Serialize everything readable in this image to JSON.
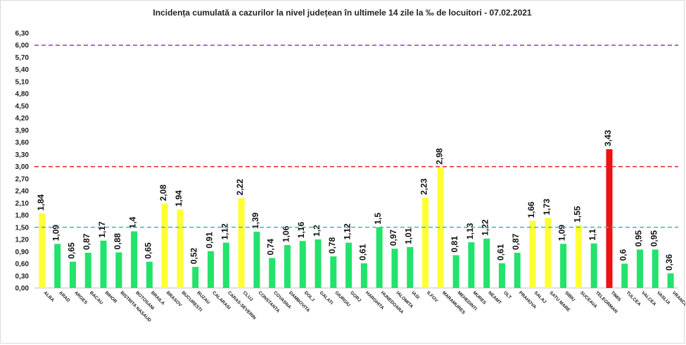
{
  "chart_data": {
    "type": "bar",
    "title": "Incidența cumulată a cazurilor la nivel județean în ultimele 14 zile la ‰ de locuitori - 07.02.2021",
    "xlabel": "",
    "ylabel": "",
    "ylim": [
      0,
      6.3
    ],
    "yticks": [
      "0,00",
      "0,30",
      "0,60",
      "0,90",
      "1,20",
      "1,50",
      "1,80",
      "2,10",
      "2,40",
      "2,70",
      "3,00",
      "3,30",
      "3,60",
      "3,90",
      "4,20",
      "4,50",
      "4,80",
      "5,10",
      "5,40",
      "5,70",
      "6,00",
      "6,30"
    ],
    "grid": false,
    "legend": "none",
    "categories": [
      "ALBA",
      "ARAD",
      "ARGES",
      "BACAU",
      "BIHOR",
      "BISTRITA NASAUD",
      "BOTOSANI",
      "BRAILA",
      "BRASOV",
      "BUCURESTI",
      "BUZAU",
      "CALARASI",
      "CARAS-SEVERIN",
      "CLUJ",
      "CONSTANTA",
      "COVASNA",
      "DAMBOVITA",
      "DOLJ",
      "GALATI",
      "GIURGIU",
      "GORJ",
      "HARGHITA",
      "HUNEDOARA",
      "IALOMITA",
      "IASI",
      "ILFOV",
      "MARAMURES",
      "MEHEDINTI",
      "MURES",
      "NEAMT",
      "OLT",
      "PRAHOVA",
      "SALAJ",
      "SATU MARE",
      "SIBIU",
      "SUCEAVA",
      "TELEORMAN",
      "TIMIS",
      "TULCEA",
      "VALCEA",
      "VASLUI",
      "VRANCEA"
    ],
    "values": [
      1.84,
      1.09,
      0.65,
      0.87,
      1.17,
      0.88,
      1.4,
      0.65,
      2.08,
      1.94,
      0.52,
      0.91,
      1.12,
      2.22,
      1.39,
      0.74,
      1.06,
      1.16,
      1.2,
      0.78,
      1.12,
      0.61,
      1.5,
      0.97,
      1.01,
      2.23,
      2.98,
      0.81,
      1.13,
      1.22,
      0.61,
      0.87,
      1.66,
      1.73,
      1.09,
      1.55,
      1.1,
      3.43,
      0.6,
      0.95,
      0.95,
      0.36
    ],
    "labels": [
      "1,84",
      "1,09",
      "0,65",
      "0,87",
      "1,17",
      "0,88",
      "1,4",
      "0,65",
      "2,08",
      "1,94",
      "0,52",
      "0,91",
      "1,12",
      "2,22",
      "1,39",
      "0,74",
      "1,06",
      "1,16",
      "1,2",
      "0,78",
      "1,12",
      "0,61",
      "1,5",
      "0,97",
      "1,01",
      "2,23",
      "2,98",
      "0,81",
      "1,13",
      "1,22",
      "0,61",
      "0,87",
      "1,66",
      "1,73",
      "1,09",
      "1,55",
      "1,1",
      "3,43",
      "0,6",
      "0,95",
      "0,95",
      "0,36"
    ],
    "thresholds": [
      {
        "value": 1.5,
        "color": "#33b8d6"
      },
      {
        "value": 3.0,
        "color": "#ee2222"
      },
      {
        "value": 6.0,
        "color": "#8a3fd1"
      }
    ],
    "colors": {
      "green": "#22e36b",
      "yellow": "#ffff33",
      "red": "#ee1111"
    }
  }
}
